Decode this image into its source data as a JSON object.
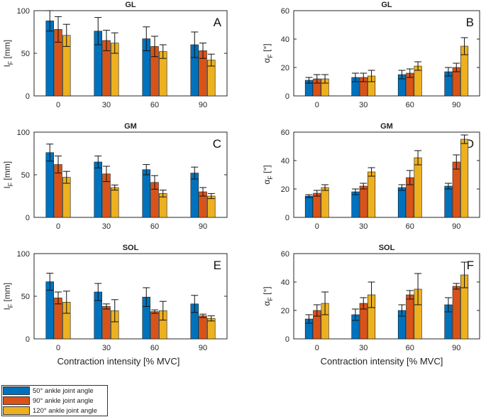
{
  "colors": {
    "s50": "#0072BD",
    "s90": "#D95319",
    "s120": "#EDB120"
  },
  "legend": {
    "items": [
      {
        "label": "50° ankle joint angle",
        "color": "#0072BD"
      },
      {
        "label": "90° ankle joint angle",
        "color": "#D95319"
      },
      {
        "label": "120° ankle joint angle",
        "color": "#EDB120"
      }
    ]
  },
  "shared_xlabel": "Contraction intensity [% MVC]",
  "chart_data": [
    {
      "id": "A",
      "panel_letter": "A",
      "type": "bar",
      "title": "GL",
      "ylabel_main": "l",
      "ylabel_sub": "F",
      "ylabel_unit": " [mm]",
      "categories": [
        "0",
        "30",
        "60",
        "90"
      ],
      "ylim": [
        0,
        100
      ],
      "yticks": [
        "0",
        "50",
        "100"
      ],
      "series": [
        {
          "name": "50° ankle joint angle",
          "values": [
            88,
            76,
            67,
            60
          ],
          "errors": [
            12,
            16,
            14,
            15
          ]
        },
        {
          "name": "90° ankle joint angle",
          "values": [
            78,
            65,
            58,
            53
          ],
          "errors": [
            15,
            12,
            12,
            9
          ]
        },
        {
          "name": "120° ankle joint angle",
          "values": [
            71,
            62,
            52,
            42
          ],
          "errors": [
            13,
            12,
            8,
            7
          ]
        }
      ]
    },
    {
      "id": "B",
      "panel_letter": "B",
      "type": "bar",
      "title": "GL",
      "ylabel_main": "α",
      "ylabel_sub": "F",
      "ylabel_unit": " [°]",
      "categories": [
        "0",
        "30",
        "60",
        "90"
      ],
      "ylim": [
        0,
        60
      ],
      "yticks": [
        "0",
        "20",
        "40",
        "60"
      ],
      "series": [
        {
          "name": "50° ankle joint angle",
          "values": [
            11,
            13,
            15,
            17
          ],
          "errors": [
            2,
            3,
            3,
            3
          ]
        },
        {
          "name": "90° ankle joint angle",
          "values": [
            12,
            13,
            16,
            20
          ],
          "errors": [
            3,
            3,
            3,
            3
          ]
        },
        {
          "name": "120° ankle joint angle",
          "values": [
            12,
            14,
            21,
            35
          ],
          "errors": [
            3,
            4,
            3,
            6
          ]
        }
      ]
    },
    {
      "id": "C",
      "panel_letter": "C",
      "type": "bar",
      "title": "GM",
      "ylabel_main": "l",
      "ylabel_sub": "F",
      "ylabel_unit": " [mm]",
      "categories": [
        "0",
        "30",
        "60",
        "90"
      ],
      "ylim": [
        0,
        100
      ],
      "yticks": [
        "0",
        "50",
        "100"
      ],
      "series": [
        {
          "name": "50° ankle joint angle",
          "values": [
            76,
            65,
            56,
            52
          ],
          "errors": [
            10,
            7,
            6,
            7
          ]
        },
        {
          "name": "90° ankle joint angle",
          "values": [
            62,
            51,
            41,
            30
          ],
          "errors": [
            10,
            9,
            8,
            5
          ]
        },
        {
          "name": "120° ankle joint angle",
          "values": [
            47,
            35,
            28,
            25
          ],
          "errors": [
            7,
            3,
            4,
            3
          ]
        }
      ]
    },
    {
      "id": "D",
      "panel_letter": "D",
      "type": "bar",
      "title": "GM",
      "ylabel_main": "α",
      "ylabel_sub": "F",
      "ylabel_unit": " [°]",
      "categories": [
        "0",
        "30",
        "60",
        "90"
      ],
      "ylim": [
        0,
        60
      ],
      "yticks": [
        "0",
        "20",
        "40",
        "60"
      ],
      "series": [
        {
          "name": "50° ankle joint angle",
          "values": [
            15,
            18,
            21,
            22
          ],
          "errors": [
            1,
            2,
            2,
            2
          ]
        },
        {
          "name": "90° ankle joint angle",
          "values": [
            17,
            22,
            28,
            39
          ],
          "errors": [
            2,
            2,
            5,
            5
          ]
        },
        {
          "name": "120° ankle joint angle",
          "values": [
            21,
            32,
            42,
            55
          ],
          "errors": [
            2,
            3,
            5,
            3
          ]
        }
      ]
    },
    {
      "id": "E",
      "panel_letter": "E",
      "type": "bar",
      "title": "SOL",
      "ylabel_main": "l",
      "ylabel_sub": "F",
      "ylabel_unit": " [mm]",
      "categories": [
        "0",
        "30",
        "60",
        "90"
      ],
      "ylim": [
        0,
        100
      ],
      "yticks": [
        "0",
        "50",
        "100"
      ],
      "series": [
        {
          "name": "50° ankle joint angle",
          "values": [
            67,
            55,
            49,
            41
          ],
          "errors": [
            10,
            10,
            11,
            10
          ]
        },
        {
          "name": "90° ankle joint angle",
          "values": [
            48,
            38,
            32,
            27
          ],
          "errors": [
            7,
            3,
            2,
            2
          ]
        },
        {
          "name": "120° ankle joint angle",
          "values": [
            43,
            33,
            33,
            24
          ],
          "errors": [
            13,
            13,
            11,
            3
          ]
        }
      ]
    },
    {
      "id": "F",
      "panel_letter": "F",
      "type": "bar",
      "title": "SOL",
      "ylabel_main": "α",
      "ylabel_sub": "F",
      "ylabel_unit": " [°]",
      "categories": [
        "0",
        "30",
        "60",
        "90"
      ],
      "ylim": [
        0,
        60
      ],
      "yticks": [
        "0",
        "20",
        "40",
        "60"
      ],
      "series": [
        {
          "name": "50° ankle joint angle",
          "values": [
            14,
            17,
            20,
            24
          ],
          "errors": [
            3,
            4,
            4,
            5
          ]
        },
        {
          "name": "90° ankle joint angle",
          "values": [
            20,
            25,
            31,
            37
          ],
          "errors": [
            4,
            4,
            3,
            2
          ]
        },
        {
          "name": "120° ankle joint angle",
          "values": [
            25,
            31,
            35,
            45
          ],
          "errors": [
            8,
            9,
            11,
            9
          ]
        }
      ]
    }
  ]
}
